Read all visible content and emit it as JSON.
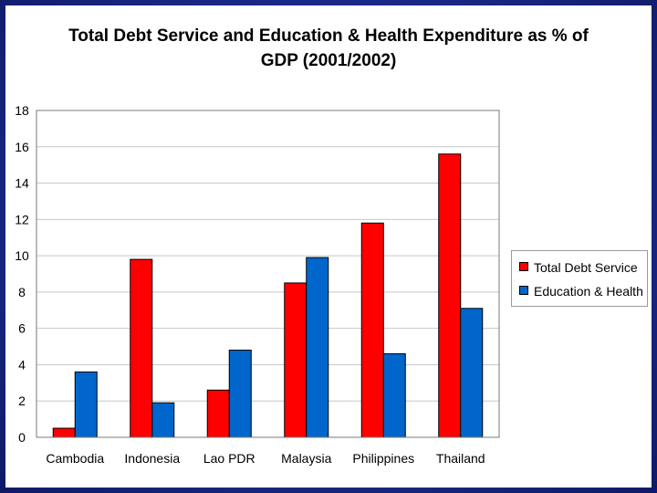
{
  "chart_data": {
    "type": "bar",
    "title_line1": "Total Debt Service and Education & Health Expenditure as % of",
    "title_line2": "GDP (2001/2002)",
    "categories": [
      "Cambodia",
      "Indonesia",
      "Lao PDR",
      "Malaysia",
      "Philippines",
      "Thailand"
    ],
    "series": [
      {
        "name": "Total Debt Service",
        "color": "#ff0000",
        "values": [
          0.5,
          9.8,
          2.6,
          8.5,
          11.8,
          15.6
        ]
      },
      {
        "name": "Education & Health",
        "color": "#0066cc",
        "values": [
          3.6,
          1.9,
          4.8,
          9.9,
          4.6,
          7.1
        ]
      }
    ],
    "yticks": [
      "0",
      "2",
      "4",
      "6",
      "8",
      "10",
      "12",
      "14",
      "16",
      "18"
    ],
    "ylim": [
      0,
      18
    ],
    "grid": true,
    "legend_position": "right",
    "xlabel": "",
    "ylabel": ""
  }
}
